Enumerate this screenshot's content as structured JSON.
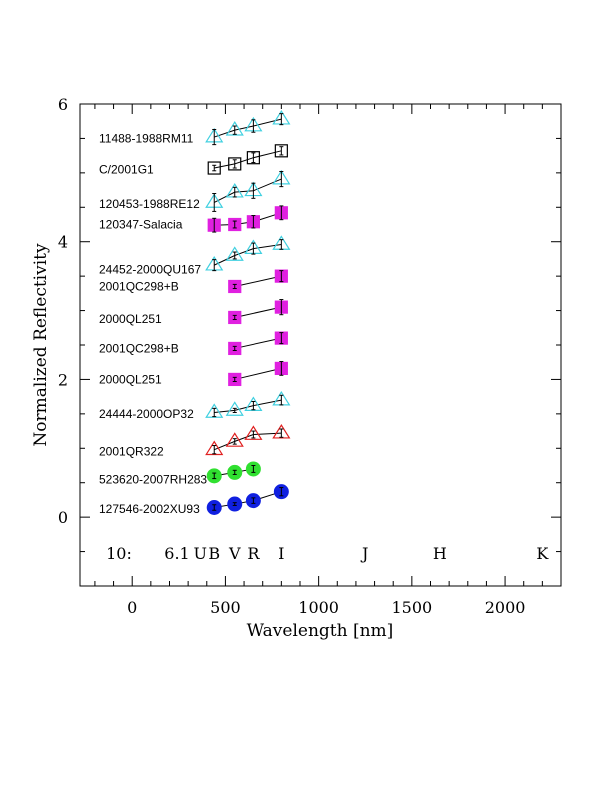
{
  "chart_data": {
    "type": "scatter",
    "xlabel": "Wavelength [nm]",
    "ylabel": "Normalized Reflectivity",
    "xlim": [
      -280,
      2300
    ],
    "ylim": [
      -1,
      6
    ],
    "x_ticks": [
      0,
      500,
      1000,
      1500,
      2000
    ],
    "y_ticks": [
      0,
      2,
      4,
      6
    ],
    "grid": false,
    "band_label_row": {
      "prefix": "10:",
      "value": "6.1",
      "y": -0.52,
      "bands": [
        {
          "name": "U",
          "x": 365
        },
        {
          "name": "B",
          "x": 440
        },
        {
          "name": "V",
          "x": 550
        },
        {
          "name": "R",
          "x": 650
        },
        {
          "name": "I",
          "x": 800
        },
        {
          "name": "J",
          "x": 1250
        },
        {
          "name": "H",
          "x": 1650
        },
        {
          "name": "K",
          "x": 2200
        }
      ]
    },
    "series": [
      {
        "name": "11488-1988RM11",
        "marker": "triangle-open",
        "color": "#40d0e0",
        "label_y": 5.5,
        "points": [
          {
            "x": 440,
            "y": 5.52,
            "err": 0.11
          },
          {
            "x": 550,
            "y": 5.62,
            "err": 0.06
          },
          {
            "x": 650,
            "y": 5.68,
            "err": 0.09
          },
          {
            "x": 800,
            "y": 5.78,
            "err": 0.08
          }
        ]
      },
      {
        "name": "C/2001G1",
        "marker": "square-open",
        "color": "#000000",
        "label_y": 5.05,
        "points": [
          {
            "x": 440,
            "y": 5.07,
            "err": 0.04
          },
          {
            "x": 550,
            "y": 5.13,
            "err": 0.06
          },
          {
            "x": 650,
            "y": 5.22,
            "err": 0.07
          },
          {
            "x": 800,
            "y": 5.32,
            "err": 0.06
          }
        ]
      },
      {
        "name": "120453-1988RE12",
        "marker": "triangle-open",
        "color": "#40d0e0",
        "label_y": 4.55,
        "points": [
          {
            "x": 440,
            "y": 4.57,
            "err": 0.13
          },
          {
            "x": 550,
            "y": 4.72,
            "err": 0.07
          },
          {
            "x": 650,
            "y": 4.74,
            "err": 0.11
          },
          {
            "x": 800,
            "y": 4.91,
            "err": 0.11
          }
        ]
      },
      {
        "name": "120347-Salacia",
        "marker": "square-filled",
        "color": "#e020e0",
        "label_y": 4.25,
        "points": [
          {
            "x": 440,
            "y": 4.24,
            "err": 0.1
          },
          {
            "x": 550,
            "y": 4.25,
            "err": 0.05
          },
          {
            "x": 650,
            "y": 4.29,
            "err": 0.09
          },
          {
            "x": 800,
            "y": 4.42,
            "err": 0.1
          }
        ]
      },
      {
        "name": "24452-2000QU167",
        "marker": "triangle-open",
        "color": "#40d0e0",
        "label_y": 3.6,
        "points": [
          {
            "x": 440,
            "y": 3.66,
            "err": 0.08
          },
          {
            "x": 550,
            "y": 3.8,
            "err": 0.05
          },
          {
            "x": 650,
            "y": 3.9,
            "err": 0.08
          },
          {
            "x": 800,
            "y": 3.96,
            "err": 0.07
          }
        ]
      },
      {
        "name": "2001QC298+B",
        "marker": "square-filled",
        "color": "#e020e0",
        "label_y": 3.35,
        "points": [
          {
            "x": 550,
            "y": 3.35,
            "err": 0.03
          },
          {
            "x": 800,
            "y": 3.5,
            "err": 0.08
          }
        ]
      },
      {
        "name": "2000QL251",
        "marker": "square-filled",
        "color": "#e020e0",
        "label_y": 2.88,
        "points": [
          {
            "x": 550,
            "y": 2.9,
            "err": 0.03
          },
          {
            "x": 800,
            "y": 3.05,
            "err": 0.11
          }
        ]
      },
      {
        "name": "2001QC298+B",
        "marker": "square-filled",
        "color": "#e020e0",
        "label_y": 2.45,
        "points": [
          {
            "x": 550,
            "y": 2.45,
            "err": 0.03
          },
          {
            "x": 800,
            "y": 2.6,
            "err": 0.08
          }
        ]
      },
      {
        "name": "2000QL251",
        "marker": "square-filled",
        "color": "#e020e0",
        "label_y": 2.0,
        "points": [
          {
            "x": 550,
            "y": 2.0,
            "err": 0.03
          },
          {
            "x": 800,
            "y": 2.16,
            "err": 0.1
          }
        ]
      },
      {
        "name": "24444-2000OP32",
        "marker": "triangle-open",
        "color": "#40d0e0",
        "label_y": 1.5,
        "points": [
          {
            "x": 440,
            "y": 1.52,
            "err": 0.06
          },
          {
            "x": 550,
            "y": 1.55,
            "err": 0.03
          },
          {
            "x": 650,
            "y": 1.62,
            "err": 0.06
          },
          {
            "x": 800,
            "y": 1.7,
            "err": 0.07
          }
        ]
      },
      {
        "name": "2001QR322",
        "marker": "triangle-open",
        "color": "#e02020",
        "label_y": 0.95,
        "points": [
          {
            "x": 440,
            "y": 0.98,
            "err": 0.06
          },
          {
            "x": 550,
            "y": 1.1,
            "err": 0.04
          },
          {
            "x": 650,
            "y": 1.2,
            "err": 0.05
          },
          {
            "x": 800,
            "y": 1.22,
            "err": 0.06
          }
        ]
      },
      {
        "name": "523620-2007RH283",
        "marker": "circle-filled",
        "color": "#30e030",
        "label_y": 0.55,
        "points": [
          {
            "x": 440,
            "y": 0.6,
            "err": 0.04
          },
          {
            "x": 550,
            "y": 0.65,
            "err": 0.03
          },
          {
            "x": 650,
            "y": 0.7,
            "err": 0.05
          }
        ]
      },
      {
        "name": "127546-2002XU93",
        "marker": "circle-filled",
        "color": "#1020e0",
        "label_y": 0.12,
        "points": [
          {
            "x": 440,
            "y": 0.14,
            "err": 0.04
          },
          {
            "x": 550,
            "y": 0.19,
            "err": 0.02
          },
          {
            "x": 650,
            "y": 0.24,
            "err": 0.04
          },
          {
            "x": 800,
            "y": 0.37,
            "err": 0.06
          }
        ]
      }
    ]
  }
}
